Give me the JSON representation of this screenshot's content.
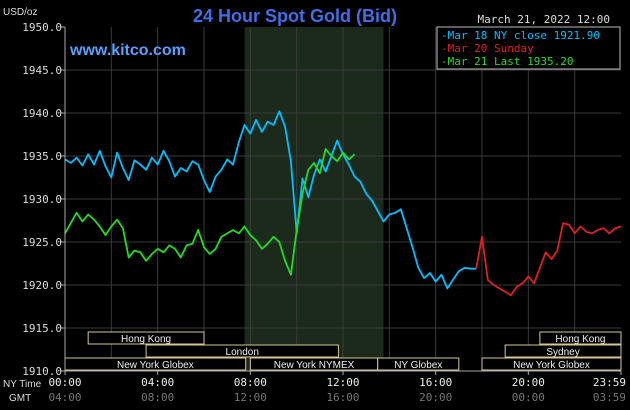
{
  "chart_data": {
    "type": "line",
    "title": "24 Hour Spot Gold (Bid)",
    "y_unit_label": "USD/oz",
    "date_time": "March 21, 2022 12:00",
    "watermark": "www.kitco.com",
    "ylim": [
      1910.0,
      1950.0
    ],
    "y_ticks": [
      "1950.0",
      "1945.0",
      "1940.0",
      "1935.0",
      "1930.0",
      "1925.0",
      "1920.0",
      "1915.0",
      "1910.0"
    ],
    "x_axis": {
      "row1_label": "NY Time",
      "row2_label": "GMT",
      "ny_ticks": [
        "00:00",
        "04:00",
        "08:00",
        "12:00",
        "16:00",
        "20:00",
        "23:59"
      ],
      "gmt_ticks": [
        "04:00",
        "08:00",
        "12:00",
        "16:00",
        "20:00",
        "00:00",
        "03:59"
      ]
    },
    "legend": [
      {
        "text": "Mar 18 NY close 1921.90",
        "color": "#00bfff"
      },
      {
        "text": "Mar 20 Sunday",
        "color": "#e02020"
      },
      {
        "text": "Mar 21 Last 1935.20",
        "color": "#22dd22"
      }
    ],
    "highlight_hours": [
      7.75,
      13.75
    ],
    "market_sessions": [
      {
        "label": "Hong Kong",
        "start_hour": 1.0,
        "end_hour": 6.0,
        "row": 1
      },
      {
        "label": "London",
        "start_hour": 3.5,
        "end_hour": 11.8,
        "row": 2
      },
      {
        "label": "New York Globex",
        "start_hour": 0.0,
        "end_hour": 7.8,
        "row": 3
      },
      {
        "label": "New York NYMEX",
        "start_hour": 8.0,
        "end_hour": 13.5,
        "row": 3
      },
      {
        "label": "NY Globex",
        "start_hour": 13.5,
        "end_hour": 17.0,
        "row": 3
      },
      {
        "label": "Hong Kong",
        "start_hour": 20.5,
        "end_hour": 24.0,
        "row": 1
      },
      {
        "label": "Sydney",
        "start_hour": 19.0,
        "end_hour": 24.0,
        "row": 2
      },
      {
        "label": "New York Globex",
        "start_hour": 18.0,
        "end_hour": 24.0,
        "row": 3
      }
    ],
    "series": [
      {
        "name": "Mar 18 NY close 1921.90",
        "color": "#00bfff",
        "points": [
          [
            0,
            1934.6
          ],
          [
            0.25,
            1934.2
          ],
          [
            0.5,
            1934.8
          ],
          [
            0.75,
            1933.9
          ],
          [
            1.0,
            1935.2
          ],
          [
            1.25,
            1934.0
          ],
          [
            1.5,
            1935.6
          ],
          [
            1.75,
            1933.8
          ],
          [
            2.0,
            1932.5
          ],
          [
            2.25,
            1935.4
          ],
          [
            2.5,
            1933.6
          ],
          [
            2.75,
            1932.2
          ],
          [
            3.0,
            1934.5
          ],
          [
            3.25,
            1934.0
          ],
          [
            3.5,
            1933.4
          ],
          [
            3.75,
            1934.8
          ],
          [
            4.0,
            1934.0
          ],
          [
            4.25,
            1935.6
          ],
          [
            4.5,
            1934.4
          ],
          [
            4.75,
            1932.6
          ],
          [
            5.0,
            1933.6
          ],
          [
            5.25,
            1933.2
          ],
          [
            5.5,
            1934.4
          ],
          [
            5.75,
            1934.0
          ],
          [
            6.0,
            1932.2
          ],
          [
            6.25,
            1930.8
          ],
          [
            6.5,
            1932.6
          ],
          [
            6.75,
            1933.4
          ],
          [
            7.0,
            1934.6
          ],
          [
            7.25,
            1934.0
          ],
          [
            7.5,
            1936.6
          ],
          [
            7.75,
            1938.6
          ],
          [
            8.0,
            1937.6
          ],
          [
            8.25,
            1939.2
          ],
          [
            8.5,
            1937.8
          ],
          [
            8.75,
            1939.0
          ],
          [
            9.0,
            1938.6
          ],
          [
            9.25,
            1940.2
          ],
          [
            9.5,
            1938.4
          ],
          [
            9.75,
            1934.4
          ],
          [
            10.0,
            1926.0
          ],
          [
            10.25,
            1932.4
          ],
          [
            10.5,
            1930.2
          ],
          [
            10.75,
            1932.8
          ],
          [
            11.0,
            1934.6
          ],
          [
            11.25,
            1933.2
          ],
          [
            11.5,
            1935.0
          ],
          [
            11.75,
            1936.8
          ],
          [
            12.0,
            1935.2
          ],
          [
            12.25,
            1934.0
          ],
          [
            12.5,
            1932.6
          ],
          [
            12.75,
            1932.0
          ],
          [
            13.0,
            1930.6
          ],
          [
            13.25,
            1929.8
          ],
          [
            13.5,
            1928.6
          ],
          [
            13.75,
            1927.4
          ],
          [
            14.0,
            1928.2
          ],
          [
            14.25,
            1928.4
          ],
          [
            14.5,
            1928.8
          ],
          [
            14.75,
            1926.6
          ],
          [
            15.0,
            1924.4
          ],
          [
            15.25,
            1922.0
          ],
          [
            15.5,
            1920.8
          ],
          [
            15.75,
            1921.4
          ],
          [
            16.0,
            1920.4
          ],
          [
            16.25,
            1921.2
          ],
          [
            16.5,
            1919.6
          ],
          [
            16.75,
            1920.6
          ],
          [
            17.0,
            1921.6
          ],
          [
            17.25,
            1922.0
          ],
          [
            17.5,
            1921.9
          ],
          [
            17.75,
            1921.9
          ]
        ]
      },
      {
        "name": "Mar 20 Sunday",
        "color": "#e02020",
        "points": [
          [
            17.75,
            1921.9
          ],
          [
            18.0,
            1925.6
          ],
          [
            18.1,
            1923.6
          ],
          [
            18.25,
            1920.6
          ],
          [
            18.5,
            1920.0
          ],
          [
            18.75,
            1919.6
          ],
          [
            19.0,
            1919.2
          ],
          [
            19.25,
            1918.8
          ],
          [
            19.5,
            1919.8
          ],
          [
            19.75,
            1920.2
          ],
          [
            20.0,
            1921.0
          ],
          [
            20.25,
            1920.2
          ],
          [
            20.5,
            1922.0
          ],
          [
            20.75,
            1923.8
          ],
          [
            21.0,
            1923.0
          ],
          [
            21.25,
            1924.0
          ],
          [
            21.5,
            1927.2
          ],
          [
            21.75,
            1927.0
          ],
          [
            22.0,
            1926.0
          ],
          [
            22.25,
            1926.8
          ],
          [
            22.5,
            1926.2
          ],
          [
            22.75,
            1926.0
          ],
          [
            23.0,
            1926.4
          ],
          [
            23.25,
            1926.6
          ],
          [
            23.5,
            1926.0
          ],
          [
            23.75,
            1926.6
          ],
          [
            24.0,
            1926.8
          ]
        ]
      },
      {
        "name": "Mar 21 Last 1935.20",
        "color": "#22dd22",
        "points": [
          [
            0,
            1926.0
          ],
          [
            0.25,
            1927.2
          ],
          [
            0.5,
            1928.4
          ],
          [
            0.75,
            1927.4
          ],
          [
            1.0,
            1928.2
          ],
          [
            1.25,
            1927.6
          ],
          [
            1.5,
            1926.8
          ],
          [
            1.75,
            1925.8
          ],
          [
            2.0,
            1926.8
          ],
          [
            2.25,
            1927.6
          ],
          [
            2.5,
            1926.6
          ],
          [
            2.75,
            1923.2
          ],
          [
            3.0,
            1924.0
          ],
          [
            3.25,
            1923.8
          ],
          [
            3.5,
            1922.8
          ],
          [
            3.75,
            1923.6
          ],
          [
            4.0,
            1924.2
          ],
          [
            4.25,
            1923.8
          ],
          [
            4.5,
            1924.6
          ],
          [
            4.75,
            1924.2
          ],
          [
            5.0,
            1923.2
          ],
          [
            5.25,
            1924.6
          ],
          [
            5.5,
            1924.8
          ],
          [
            5.75,
            1926.4
          ],
          [
            6.0,
            1924.4
          ],
          [
            6.25,
            1923.6
          ],
          [
            6.5,
            1924.2
          ],
          [
            6.75,
            1925.6
          ],
          [
            7.0,
            1926.0
          ],
          [
            7.25,
            1926.4
          ],
          [
            7.5,
            1926.0
          ],
          [
            7.75,
            1926.8
          ],
          [
            8.0,
            1925.8
          ],
          [
            8.25,
            1925.2
          ],
          [
            8.5,
            1924.2
          ],
          [
            8.75,
            1924.8
          ],
          [
            9.0,
            1925.6
          ],
          [
            9.25,
            1925.0
          ],
          [
            9.5,
            1922.8
          ],
          [
            9.75,
            1921.2
          ],
          [
            10.0,
            1926.4
          ],
          [
            10.25,
            1930.6
          ],
          [
            10.5,
            1933.4
          ],
          [
            10.75,
            1934.2
          ],
          [
            11.0,
            1933.0
          ],
          [
            11.25,
            1935.8
          ],
          [
            11.5,
            1935.0
          ],
          [
            11.75,
            1934.4
          ],
          [
            12.0,
            1935.4
          ],
          [
            12.25,
            1934.6
          ],
          [
            12.5,
            1935.2
          ]
        ]
      }
    ]
  }
}
